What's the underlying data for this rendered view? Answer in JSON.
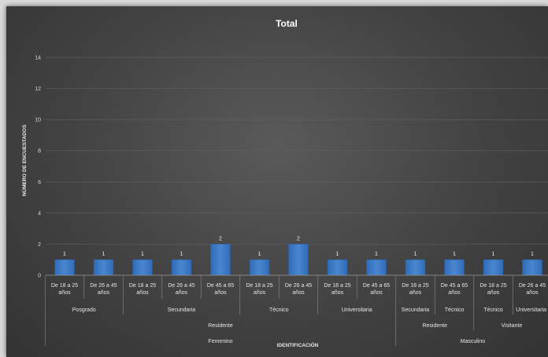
{
  "chart_data": {
    "type": "bar",
    "title": "Total",
    "xlabel": "IDENTIFICACIÓN",
    "ylabel": "NÚMERO DE ENCUESTADOS",
    "ylim": [
      0,
      14
    ],
    "yticks": [
      0,
      2,
      4,
      6,
      8,
      10,
      12,
      14
    ],
    "grid": true,
    "legend": "none",
    "bar_color": "#4a86d0",
    "categories": [
      {
        "label": [
          "De 18 a 25",
          "años"
        ],
        "level1": "Posgrado",
        "level2": "Residente",
        "level3": "Femenino"
      },
      {
        "label": [
          "De 26 a 45",
          "años"
        ],
        "level1": "Posgrado",
        "level2": "Residente",
        "level3": "Femenino"
      },
      {
        "label": [
          "De 18 a 25",
          "años"
        ],
        "level1": "Secundaria",
        "level2": "Residente",
        "level3": "Femenino"
      },
      {
        "label": [
          "De 26 a 45",
          "años"
        ],
        "level1": "Secundaria",
        "level2": "Residente",
        "level3": "Femenino"
      },
      {
        "label": [
          "De 45 a 65",
          "años"
        ],
        "level1": "Secundaria",
        "level2": "Residente",
        "level3": "Femenino"
      },
      {
        "label": [
          "De 18 a 25",
          "años"
        ],
        "level1": "Técnico",
        "level2": "Residente",
        "level3": "Femenino"
      },
      {
        "label": [
          "De 26 a 45",
          "años"
        ],
        "level1": "Técnico",
        "level2": "Residente",
        "level3": "Femenino"
      },
      {
        "label": [
          "De 18 a 25",
          "años"
        ],
        "level1": "Universitaria",
        "level2": "Residente",
        "level3": "Femenino"
      },
      {
        "label": [
          "De 45 a 65",
          "años"
        ],
        "level1": "Universitaria",
        "level2": "Residente",
        "level3": "Femenino"
      },
      {
        "label": [
          "De 18 a 25",
          "años"
        ],
        "level1": "Secundaria",
        "level2": "Residente",
        "level3": "Masculino"
      },
      {
        "label": [
          "De 45 a 65",
          "años"
        ],
        "level1": "Técnico",
        "level2": "Residente",
        "level3": "Masculino"
      },
      {
        "label": [
          "De 18 a 25",
          "años"
        ],
        "level1": "Técnico",
        "level2": "Visitante",
        "level3": "Masculino"
      },
      {
        "label": [
          "De 26 a 45",
          "años"
        ],
        "level1": "Universitaria",
        "level2": "Visitante",
        "level3": "Masculino"
      }
    ],
    "values": [
      1,
      1,
      1,
      1,
      2,
      1,
      2,
      1,
      1,
      1,
      1,
      1,
      1
    ]
  }
}
